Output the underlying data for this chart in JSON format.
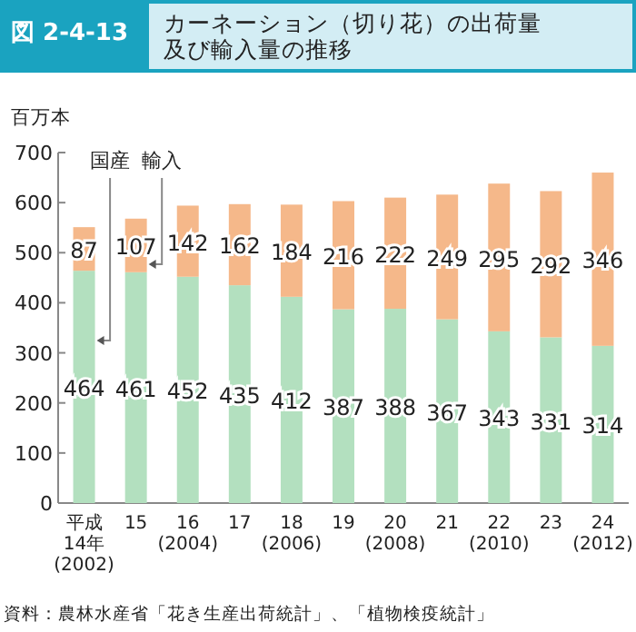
{
  "chart_data": {
    "type": "bar",
    "stacked": true,
    "title": "カーネーション（切り花）の出荷量及び輸入量の推移",
    "ylabel": "百万本",
    "annotations": [
      "図 2-4-13",
      "資料：農林水産省「花き生産出荷統計」、「植物検疫統計」"
    ],
    "categories": [
      "平成\n14年\n(2002)",
      "15",
      "16\n(2004)",
      "17",
      "18\n(2006)",
      "19",
      "20\n(2008)",
      "21",
      "22\n(2010)",
      "23",
      "24\n(2012)"
    ],
    "series": [
      {
        "name": "国産",
        "color": "#b3e0bf",
        "values": [
          464,
          461,
          452,
          435,
          412,
          387,
          388,
          367,
          343,
          331,
          314
        ]
      },
      {
        "name": "輸入",
        "color": "#f5b88a",
        "values": [
          87,
          107,
          142,
          162,
          184,
          216,
          222,
          249,
          295,
          292,
          346
        ]
      }
    ],
    "ylim": [
      0,
      700
    ],
    "yticks": [
      0,
      100,
      200,
      300,
      400,
      500,
      600,
      700
    ],
    "data_labels": true,
    "grid": false,
    "legend": false
  }
}
